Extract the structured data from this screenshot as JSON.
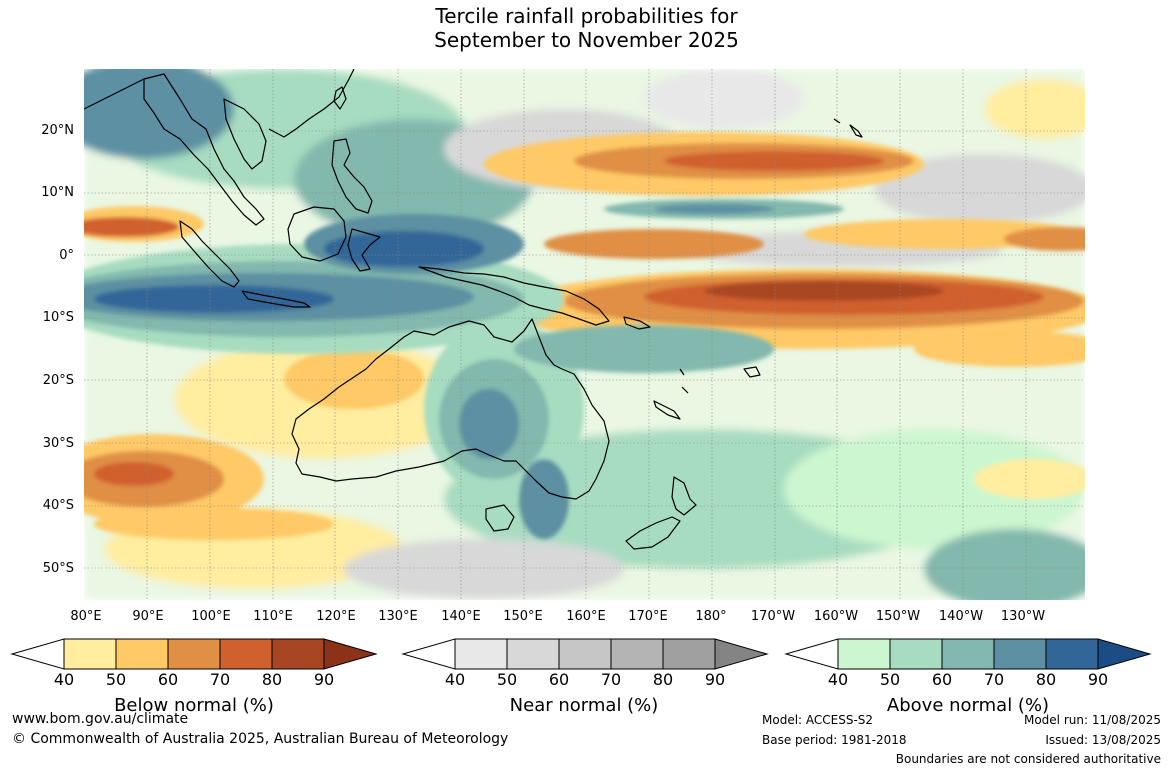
{
  "title_line1": "Tercile rainfall probabilities for",
  "title_line2": "September to November 2025",
  "lat_labels": [
    "20°N",
    "10°N",
    "0°",
    "10°S",
    "20°S",
    "30°S",
    "40°S",
    "50°S"
  ],
  "lon_labels": [
    "80°E",
    "90°E",
    "100°E",
    "110°E",
    "120°E",
    "130°E",
    "140°E",
    "150°E",
    "160°E",
    "170°E",
    "180°",
    "170°W",
    "160°W",
    "150°W",
    "140°W",
    "130°W"
  ],
  "colorbars": {
    "below": {
      "title": "Below normal (%)",
      "ticks": [
        "40",
        "50",
        "60",
        "70",
        "80",
        "90"
      ],
      "colors": [
        "#ffeda0",
        "#fec966",
        "#e08f45",
        "#d0612f",
        "#a84624",
        "#8b3218"
      ]
    },
    "near": {
      "title": "Near normal (%)",
      "ticks": [
        "40",
        "50",
        "60",
        "70",
        "80",
        "90"
      ],
      "colors": [
        "#e8e8e8",
        "#d8d8d8",
        "#c6c6c6",
        "#b4b4b4",
        "#a0a0a0",
        "#848484"
      ]
    },
    "above": {
      "title": "Above normal (%)",
      "ticks": [
        "40",
        "50",
        "60",
        "70",
        "80",
        "90"
      ],
      "colors": [
        "#ccf6cf",
        "#a7dcc1",
        "#82b8ad",
        "#5c90a2",
        "#336698",
        "#1b4c84"
      ]
    }
  },
  "footer": {
    "website": "www.bom.gov.au/climate",
    "copyright": "© Commonwealth of Australia 2025, Australian Bureau of Meteorology",
    "model": "Model: ACCESS-S2",
    "base_period": "Base period: 1981-2018",
    "model_run": "Model run: 11/08/2025",
    "issued": "Issued: 13/08/2025",
    "disclaimer": "Boundaries are not considered authoritative"
  }
}
